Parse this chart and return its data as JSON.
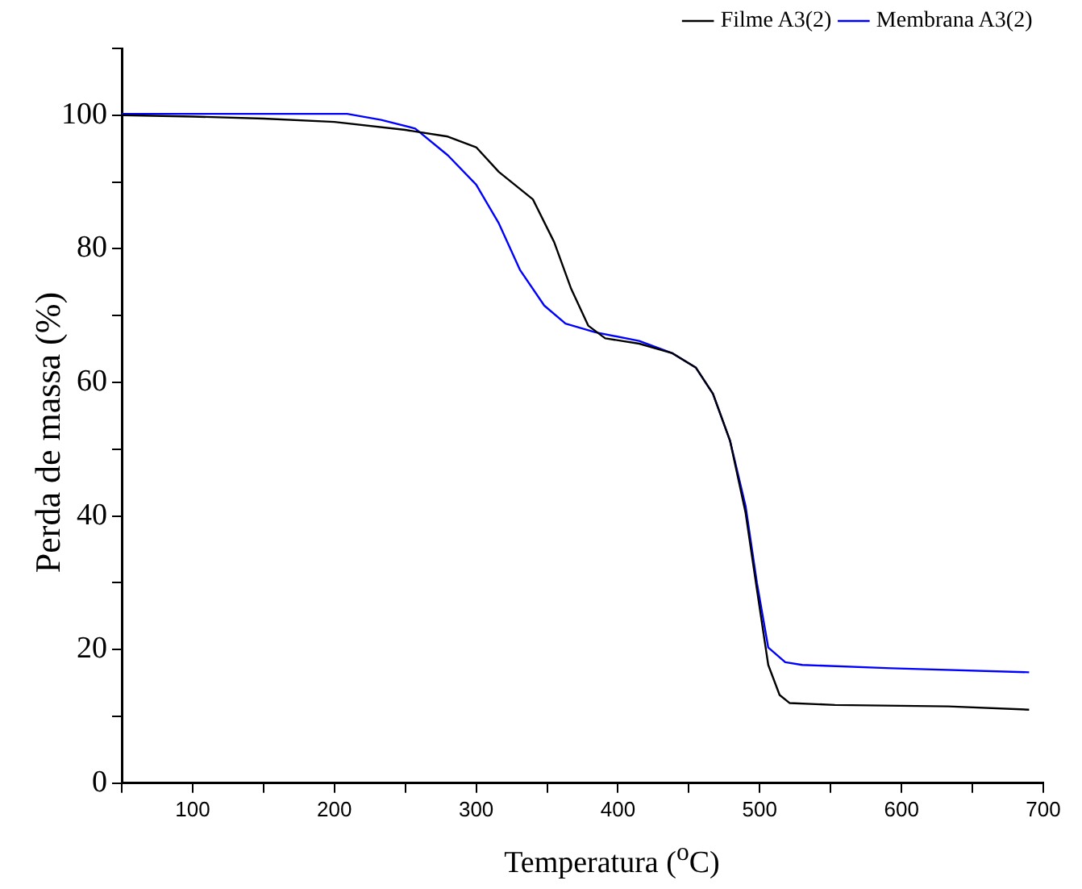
{
  "chart_data": {
    "type": "line",
    "xlabel": "Temperatura ($^{o}$C)",
    "ylabel": "Perda de massa (%)",
    "xlim": [
      50,
      700
    ],
    "ylim": [
      0,
      110
    ],
    "xticks": [
      {
        "value": 50,
        "label": null
      },
      100,
      {
        "value": 150,
        "label": null
      },
      200,
      {
        "value": 250,
        "label": null
      },
      300,
      {
        "value": 350,
        "label": null
      },
      400,
      {
        "value": 450,
        "label": null
      },
      500,
      {
        "value": 550,
        "label": null
      },
      600,
      {
        "value": 650,
        "label": null
      },
      700
    ],
    "yticks": [
      0,
      {
        "value": 10,
        "label": null
      },
      20,
      {
        "value": 30,
        "label": null
      },
      40,
      {
        "value": 50,
        "label": null
      },
      60,
      {
        "value": 70,
        "label": null
      },
      80,
      {
        "value": 90,
        "label": null
      },
      100,
      {
        "value": 110,
        "label": null
      }
    ],
    "grid": false,
    "legend": "top right",
    "marker": "none",
    "line_style": "solid",
    "series": [
      {
        "name": "Filme A3(2)",
        "color": "#000000",
        "x": [
          50,
          100,
          150,
          200,
          250,
          280,
          300,
          316,
          340,
          355,
          367,
          379,
          391,
          415,
          438,
          455,
          467,
          479,
          490,
          498,
          506,
          514,
          521,
          553,
          633,
          690
        ],
        "values": [
          100,
          99.8,
          99.5,
          99,
          97.8,
          96.8,
          95.2,
          91.5,
          87.4,
          81,
          74,
          68.5,
          66.6,
          65.8,
          64.4,
          62.2,
          58.3,
          51.3,
          40.5,
          29,
          17.7,
          13.2,
          12,
          11.7,
          11.5,
          11
        ]
      },
      {
        "name": "Membrana A3(2)",
        "color": "#0000ff",
        "x": [
          50,
          100,
          150,
          209,
          233,
          257,
          280,
          300,
          316,
          331,
          348,
          363,
          384,
          415,
          438,
          455,
          467,
          479,
          490,
          498,
          506,
          518,
          530,
          593,
          690
        ],
        "values": [
          100.2,
          100.2,
          100.2,
          100.2,
          99.3,
          98,
          94,
          89.6,
          83.8,
          76.8,
          71.5,
          68.8,
          67.5,
          66.2,
          64.4,
          62.2,
          58.3,
          51.3,
          41.5,
          30,
          20.3,
          18.1,
          17.7,
          17.2,
          16.6
        ]
      }
    ]
  }
}
